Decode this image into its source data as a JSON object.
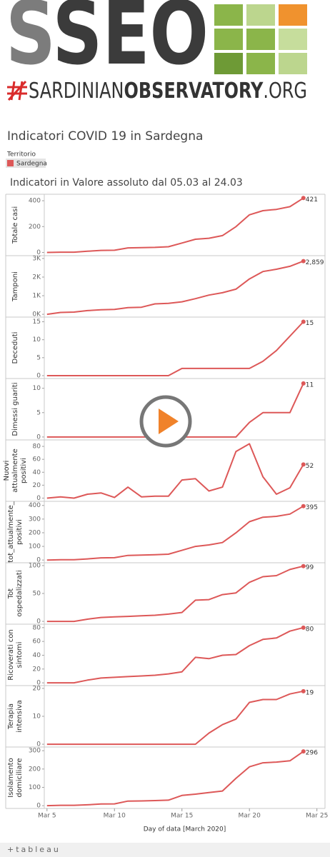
{
  "logo": {
    "mark": "SSEO",
    "line": [
      "SARDINIAN",
      "OBSERVATORY",
      ".ORG"
    ]
  },
  "chart_data": {
    "type": "line",
    "title": "Indicatori COVID 19 in Sardegna",
    "subtitle": "Indicatori in Valore assoluto dal 05.03 al 24.03",
    "legend": {
      "title": "Territorio",
      "entries": [
        "Sardegna"
      ]
    },
    "color": "#dd5858",
    "x": [
      5,
      6,
      7,
      8,
      9,
      10,
      11,
      12,
      13,
      14,
      15,
      16,
      17,
      18,
      19,
      20,
      21,
      22,
      23,
      24
    ],
    "xlim": [
      4.8,
      25.6
    ],
    "xticks": [
      {
        "value": 5,
        "label": "Mar 5"
      },
      {
        "value": 10,
        "label": "Mar 10"
      },
      {
        "value": 15,
        "label": "Mar 15"
      },
      {
        "value": 20,
        "label": "Mar 20"
      },
      {
        "value": 25,
        "label": "Mar 25"
      }
    ],
    "xlabel": "Day of data [March 2020]",
    "panels": [
      {
        "ylabel": "Totale casi",
        "ylim": [
          -25,
          450
        ],
        "yticks": [
          0,
          200,
          400
        ],
        "values": [
          0,
          2,
          2,
          9,
          16,
          17,
          35,
          37,
          39,
          44,
          73,
          102,
          110,
          130,
          199,
          291,
          323,
          333,
          354,
          421
        ]
      },
      {
        "ylabel": "Tamponi",
        "ylim": [
          -150,
          3150
        ],
        "yticks": [
          {
            "value": 0,
            "label": "0K"
          },
          {
            "value": 1000,
            "label": "1K"
          },
          {
            "value": 2000,
            "label": "2K"
          },
          {
            "value": 3000,
            "label": "3K"
          }
        ],
        "values": [
          0,
          100,
          120,
          200,
          240,
          260,
          360,
          380,
          560,
          590,
          670,
          840,
          1030,
          1160,
          1350,
          1900,
          2300,
          2420,
          2580,
          2859
        ],
        "value_labels": [
          null,
          null,
          null,
          null,
          null,
          null,
          null,
          null,
          null,
          null,
          null,
          null,
          null,
          null,
          null,
          null,
          null,
          null,
          null,
          "2,859"
        ]
      },
      {
        "ylabel": "Deceduti",
        "ylim": [
          -0.8,
          16.3
        ],
        "yticks": [
          0,
          5,
          10,
          15
        ],
        "values": [
          0,
          0,
          0,
          0,
          0,
          0,
          0,
          0,
          0,
          0,
          2,
          2,
          2,
          2,
          2,
          2,
          4,
          7,
          11,
          15
        ]
      },
      {
        "ylabel": "Dimessi guariti",
        "ylim": [
          -0.6,
          12
        ],
        "yticks": [
          0,
          5,
          10
        ],
        "values": [
          0,
          0,
          0,
          0,
          0,
          0,
          0,
          0,
          0,
          0,
          0,
          0,
          0,
          0,
          0,
          3,
          5,
          5,
          5,
          11
        ]
      },
      {
        "ylabel": "Nuovi attualmente positivi",
        "ylim": [
          -5,
          90
        ],
        "yticks": [
          0,
          20,
          40,
          60,
          80
        ],
        "values": [
          0,
          2,
          0,
          6,
          8,
          1,
          17,
          2,
          3,
          3,
          28,
          30,
          11,
          17,
          72,
          84,
          33,
          6,
          16,
          52
        ]
      },
      {
        "ylabel": "tot_attualmente_ positivi",
        "ylim": [
          -20,
          430
        ],
        "yticks": [
          0,
          100,
          200,
          300,
          400
        ],
        "values": [
          0,
          2,
          2,
          8,
          16,
          17,
          34,
          36,
          39,
          43,
          71,
          100,
          111,
          128,
          199,
          281,
          314,
          320,
          337,
          395
        ]
      },
      {
        "ylabel": "Tot ospedalizzati",
        "ylim": [
          -5,
          105
        ],
        "yticks": [
          0,
          50,
          100
        ],
        "values": [
          0,
          0,
          0,
          4,
          7,
          8,
          9,
          10,
          11,
          13,
          16,
          38,
          39,
          48,
          51,
          70,
          80,
          82,
          93,
          99
        ]
      },
      {
        "ylabel": "Ricoverati con sintomi",
        "ylim": [
          -4,
          85
        ],
        "yticks": [
          0,
          20,
          40,
          60,
          80
        ],
        "values": [
          0,
          0,
          0,
          4,
          7,
          8,
          9,
          10,
          11,
          13,
          16,
          37,
          35,
          40,
          41,
          54,
          63,
          65,
          75,
          80
        ]
      },
      {
        "ylabel": "Terapia intensiva",
        "ylim": [
          -1,
          21
        ],
        "yticks": [
          0,
          10,
          20
        ],
        "values": [
          0,
          0,
          0,
          0,
          0,
          0,
          0,
          0,
          0,
          0,
          0,
          0,
          4,
          7,
          9,
          15,
          16,
          16,
          18,
          19
        ]
      },
      {
        "ylabel": "Isolamento domiciliare",
        "ylim": [
          -15,
          320
        ],
        "yticks": [
          0,
          100,
          200,
          300
        ],
        "values": [
          0,
          2,
          2,
          5,
          9,
          10,
          25,
          26,
          28,
          30,
          56,
          63,
          72,
          80,
          149,
          212,
          234,
          238,
          245,
          296
        ]
      }
    ]
  }
}
